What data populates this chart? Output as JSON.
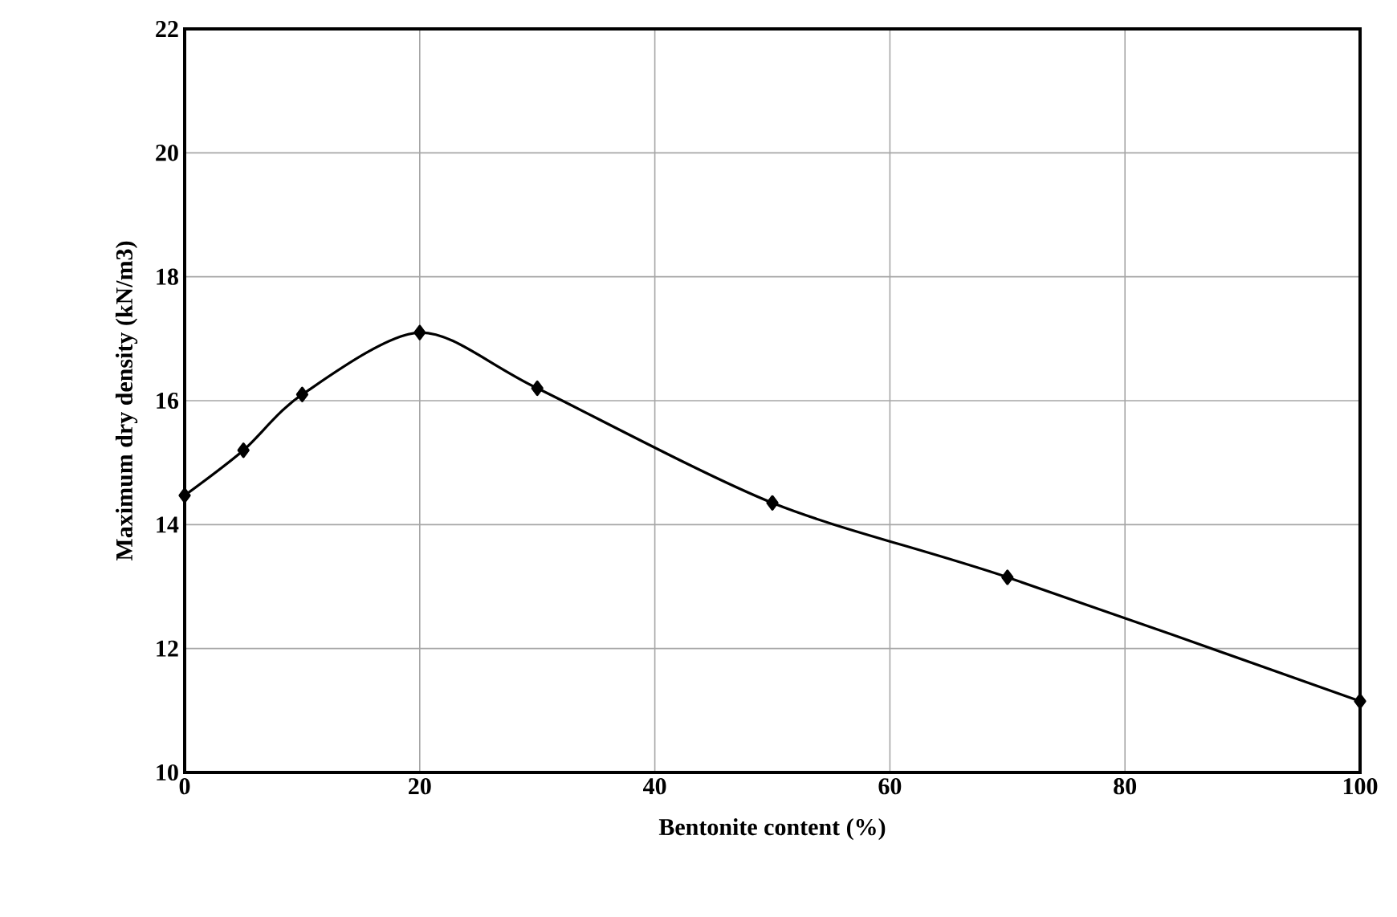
{
  "chart_data": {
    "type": "line",
    "xlabel": "Bentonite content (%)",
    "ylabel": "Maximum dry density (kN/m3)",
    "x": [
      0,
      5,
      10,
      20,
      30,
      50,
      70,
      100
    ],
    "series": [
      {
        "color": "#000000",
        "values": [
          14.47,
          15.2,
          16.1,
          17.1,
          16.2,
          14.35,
          13.15,
          11.15
        ]
      }
    ],
    "xlim": [
      0,
      100
    ],
    "ylim": [
      10,
      22
    ],
    "xticks": [
      0,
      20,
      40,
      60,
      80,
      100
    ],
    "yticks": [
      10,
      12,
      14,
      16,
      18,
      20,
      22
    ],
    "grid": true,
    "marker": "diamond",
    "line_style": "solid"
  }
}
